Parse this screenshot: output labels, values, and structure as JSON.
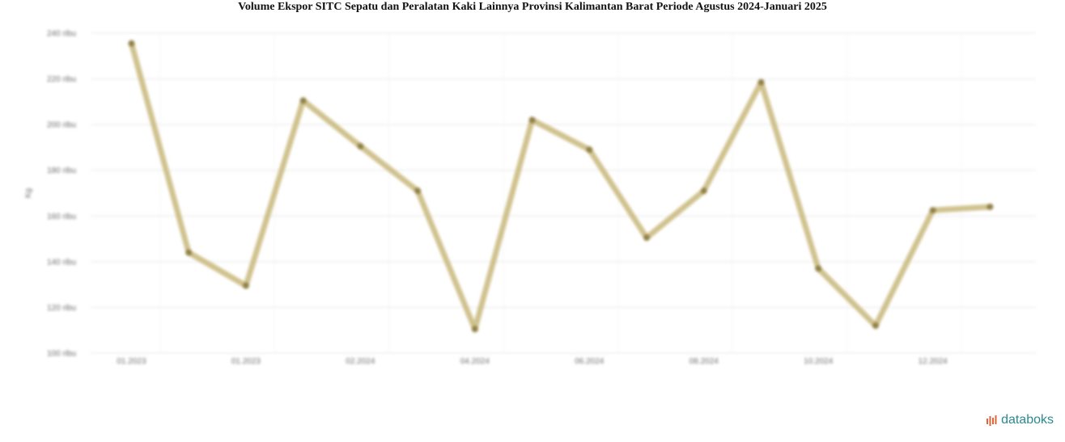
{
  "chart_data": {
    "type": "line",
    "title": "Volume Ekspor SITC Sepatu dan Peralatan Kaki Lainnya Provinsi Kalimantan Barat Periode Agustus 2024-Januari 2025",
    "ylabel": "Kg",
    "xlabel": "",
    "ylim": [
      100,
      240
    ],
    "y_ticks": [
      100,
      120,
      140,
      160,
      180,
      200,
      220,
      240
    ],
    "y_tick_labels": [
      "100 ribu",
      "120 ribu",
      "140 ribu",
      "160 ribu",
      "180 ribu",
      "200 ribu",
      "220 ribu",
      "240 ribu"
    ],
    "x_tick_labels": [
      "01.2023",
      "01.2023",
      "02.2024",
      "04.2024",
      "06.2024",
      "08.2024",
      "10.2024",
      "12.2024"
    ],
    "x_tick_positions": [
      0,
      2,
      4,
      6,
      8,
      10,
      12,
      14
    ],
    "x_grid_positions": [
      0.5,
      2.5,
      4.5,
      6.5,
      8.5,
      10.5,
      12.5,
      14.5
    ],
    "x_range": [
      -0.6,
      15.8
    ],
    "grid": true,
    "color": "#c8b77a",
    "series": [
      {
        "values": [
          235.5,
          144,
          129.5,
          210.5,
          190.5,
          171,
          110.5,
          202,
          189,
          150.5,
          171,
          218.5,
          137,
          112,
          162.5,
          164
        ]
      }
    ]
  },
  "brand": {
    "name": "databoks",
    "icon": "databoks-logo-icon"
  }
}
